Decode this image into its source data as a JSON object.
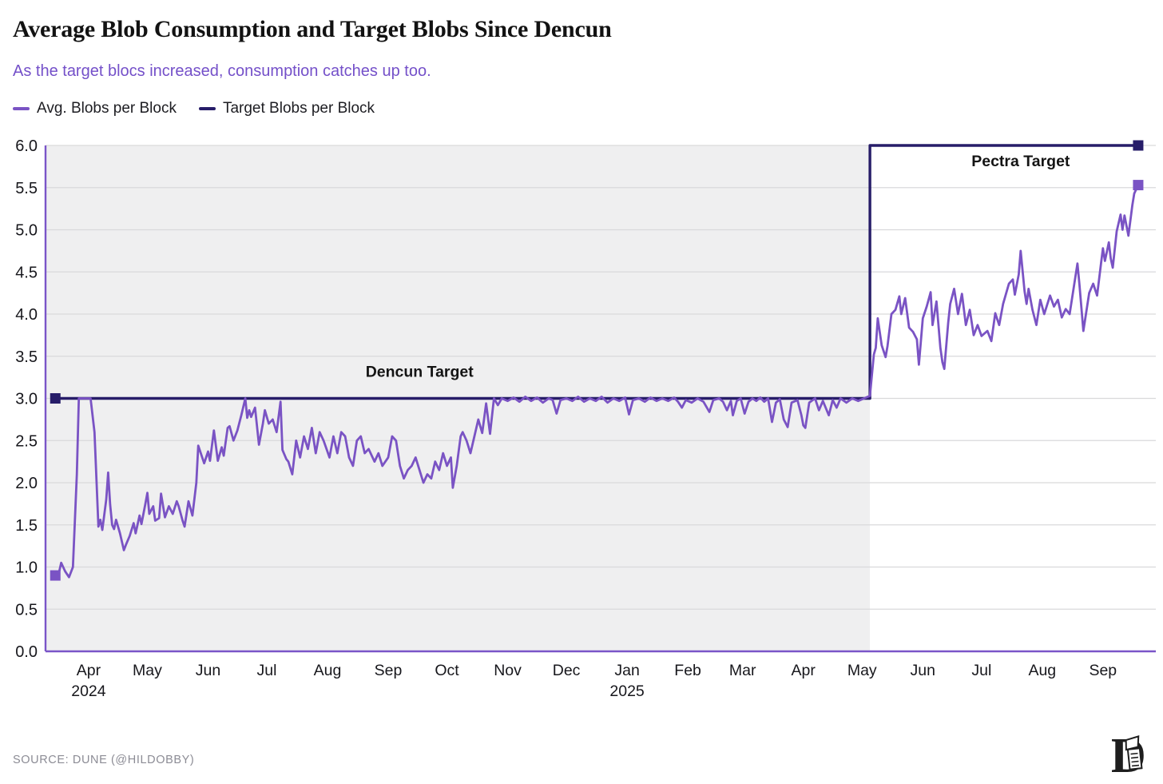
{
  "header": {
    "title": "Average Blob Consumption and Target Blobs Since Dencun",
    "subtitle": "As the target blocs increased, consumption catches up too.",
    "subtitle_color": "#7450c9",
    "legend": [
      {
        "label": "Avg. Blobs per Block",
        "color": "#7a53c4"
      },
      {
        "label": "Target Blobs per Block",
        "color": "#271d69"
      }
    ]
  },
  "footer": {
    "source": "SOURCE: DUNE (@HILDOBBY)",
    "logo_icon": "defiant-d-logo"
  },
  "chart_data": {
    "type": "line",
    "title": "Average Blob Consumption and Target Blobs Since Dencun",
    "subtitle": "As the target blocs increased, consumption catches up too.",
    "grid": "horizontal-only",
    "legend_position": "top-left",
    "colors": {
      "plot_background_left": "#efeff0",
      "plot_background_right": "#ffffff",
      "gridline": "#d9d9db",
      "axis": "#7a55c8",
      "tick_text": "#17171c",
      "annotation_text": "#141414"
    },
    "x_axis": {
      "x_unit": "day index (0 = chart start, mid-March 2024)",
      "domain": [
        -5,
        562
      ],
      "ticks": [
        {
          "day": 17,
          "label": "Apr",
          "year": "2024"
        },
        {
          "day": 47,
          "label": "May"
        },
        {
          "day": 78,
          "label": "Jun"
        },
        {
          "day": 108,
          "label": "Jul"
        },
        {
          "day": 139,
          "label": "Aug"
        },
        {
          "day": 170,
          "label": "Sep"
        },
        {
          "day": 200,
          "label": "Oct"
        },
        {
          "day": 231,
          "label": "Nov"
        },
        {
          "day": 261,
          "label": "Dec"
        },
        {
          "day": 292,
          "label": "Jan",
          "year": "2025"
        },
        {
          "day": 323,
          "label": "Feb"
        },
        {
          "day": 351,
          "label": "Mar"
        },
        {
          "day": 382,
          "label": "Apr"
        },
        {
          "day": 412,
          "label": "May"
        },
        {
          "day": 443,
          "label": "Jun"
        },
        {
          "day": 473,
          "label": "Jul"
        },
        {
          "day": 504,
          "label": "Aug"
        },
        {
          "day": 535,
          "label": "Sep"
        }
      ]
    },
    "y_axis": {
      "domain": [
        0,
        6
      ],
      "tick_step": 0.5,
      "tick_labels": [
        "0.0",
        "0.5",
        "1.0",
        "1.5",
        "2.0",
        "2.5",
        "3.0",
        "3.5",
        "4.0",
        "4.5",
        "5.0",
        "5.5",
        "6.0"
      ]
    },
    "shaded_region": {
      "from_day": -5,
      "to_day": 416,
      "color": "#efeff0"
    },
    "annotations": [
      {
        "text": "Dencun Target",
        "day": 186,
        "value": 3.32
      },
      {
        "text": "Pectra Target",
        "day": 493,
        "value": 5.82
      }
    ],
    "series": [
      {
        "name": "Target Blobs per Block",
        "color": "#271d69",
        "stroke_width": 3.4,
        "end_markers": true,
        "points": [
          [
            0,
            3
          ],
          [
            416,
            3
          ],
          [
            416,
            6
          ],
          [
            553,
            6
          ]
        ]
      },
      {
        "name": "Avg. Blobs per Block",
        "color": "#7a53c4",
        "stroke_width": 2.8,
        "end_markers": true,
        "points": [
          [
            0,
            0.9
          ],
          [
            2,
            0.95
          ],
          [
            3,
            1.05
          ],
          [
            5,
            0.95
          ],
          [
            7,
            0.88
          ],
          [
            9,
            1.0
          ],
          [
            11,
            2.1
          ],
          [
            12,
            3.0
          ],
          [
            18,
            3.0
          ],
          [
            20,
            2.6
          ],
          [
            22,
            1.48
          ],
          [
            23,
            1.56
          ],
          [
            24,
            1.44
          ],
          [
            26,
            1.8
          ],
          [
            27,
            2.12
          ],
          [
            28,
            1.74
          ],
          [
            29,
            1.5
          ],
          [
            30,
            1.45
          ],
          [
            31,
            1.56
          ],
          [
            33,
            1.4
          ],
          [
            35,
            1.2
          ],
          [
            36,
            1.26
          ],
          [
            38,
            1.37
          ],
          [
            40,
            1.52
          ],
          [
            41,
            1.4
          ],
          [
            43,
            1.61
          ],
          [
            44,
            1.51
          ],
          [
            46,
            1.75
          ],
          [
            47,
            1.88
          ],
          [
            48,
            1.63
          ],
          [
            50,
            1.72
          ],
          [
            51,
            1.55
          ],
          [
            53,
            1.58
          ],
          [
            54,
            1.87
          ],
          [
            56,
            1.59
          ],
          [
            58,
            1.72
          ],
          [
            60,
            1.63
          ],
          [
            62,
            1.78
          ],
          [
            63,
            1.72
          ],
          [
            65,
            1.55
          ],
          [
            66,
            1.48
          ],
          [
            68,
            1.78
          ],
          [
            70,
            1.61
          ],
          [
            72,
            2.0
          ],
          [
            73,
            2.44
          ],
          [
            76,
            2.23
          ],
          [
            78,
            2.37
          ],
          [
            79,
            2.26
          ],
          [
            81,
            2.62
          ],
          [
            83,
            2.26
          ],
          [
            85,
            2.42
          ],
          [
            86,
            2.32
          ],
          [
            88,
            2.65
          ],
          [
            89,
            2.67
          ],
          [
            91,
            2.5
          ],
          [
            93,
            2.62
          ],
          [
            95,
            2.8
          ],
          [
            97,
            3.0
          ],
          [
            98,
            2.77
          ],
          [
            99,
            2.86
          ],
          [
            100,
            2.78
          ],
          [
            102,
            2.89
          ],
          [
            104,
            2.45
          ],
          [
            106,
            2.7
          ],
          [
            107,
            2.86
          ],
          [
            109,
            2.7
          ],
          [
            111,
            2.75
          ],
          [
            113,
            2.6
          ],
          [
            115,
            2.96
          ],
          [
            116,
            2.39
          ],
          [
            118,
            2.28
          ],
          [
            119,
            2.25
          ],
          [
            121,
            2.1
          ],
          [
            123,
            2.5
          ],
          [
            125,
            2.3
          ],
          [
            127,
            2.55
          ],
          [
            129,
            2.4
          ],
          [
            131,
            2.65
          ],
          [
            133,
            2.35
          ],
          [
            135,
            2.6
          ],
          [
            137,
            2.5
          ],
          [
            140,
            2.3
          ],
          [
            142,
            2.55
          ],
          [
            144,
            2.35
          ],
          [
            146,
            2.6
          ],
          [
            148,
            2.55
          ],
          [
            150,
            2.3
          ],
          [
            152,
            2.2
          ],
          [
            154,
            2.5
          ],
          [
            156,
            2.55
          ],
          [
            158,
            2.35
          ],
          [
            160,
            2.4
          ],
          [
            163,
            2.25
          ],
          [
            165,
            2.35
          ],
          [
            167,
            2.2
          ],
          [
            170,
            2.3
          ],
          [
            172,
            2.55
          ],
          [
            174,
            2.5
          ],
          [
            176,
            2.2
          ],
          [
            178,
            2.05
          ],
          [
            180,
            2.15
          ],
          [
            182,
            2.2
          ],
          [
            184,
            2.3
          ],
          [
            186,
            2.15
          ],
          [
            188,
            2.0
          ],
          [
            190,
            2.1
          ],
          [
            192,
            2.05
          ],
          [
            194,
            2.25
          ],
          [
            196,
            2.15
          ],
          [
            198,
            2.35
          ],
          [
            200,
            2.2
          ],
          [
            202,
            2.3
          ],
          [
            203,
            1.94
          ],
          [
            205,
            2.2
          ],
          [
            207,
            2.55
          ],
          [
            208,
            2.6
          ],
          [
            210,
            2.5
          ],
          [
            212,
            2.35
          ],
          [
            214,
            2.55
          ],
          [
            216,
            2.75
          ],
          [
            218,
            2.59
          ],
          [
            220,
            2.94
          ],
          [
            222,
            2.58
          ],
          [
            224,
            3.0
          ],
          [
            226,
            2.92
          ],
          [
            228,
            3.0
          ],
          [
            231,
            2.97
          ],
          [
            234,
            3.01
          ],
          [
            237,
            2.96
          ],
          [
            240,
            3.02
          ],
          [
            243,
            2.97
          ],
          [
            246,
            3.01
          ],
          [
            249,
            2.95
          ],
          [
            252,
            3.0
          ],
          [
            254,
            2.98
          ],
          [
            256,
            2.82
          ],
          [
            258,
            2.98
          ],
          [
            261,
            3.0
          ],
          [
            264,
            2.97
          ],
          [
            267,
            3.02
          ],
          [
            270,
            2.96
          ],
          [
            273,
            3.0
          ],
          [
            276,
            2.97
          ],
          [
            279,
            3.02
          ],
          [
            282,
            2.95
          ],
          [
            285,
            3.0
          ],
          [
            288,
            2.97
          ],
          [
            291,
            3.01
          ],
          [
            293,
            2.81
          ],
          [
            295,
            2.98
          ],
          [
            298,
            3.0
          ],
          [
            301,
            2.96
          ],
          [
            304,
            3.01
          ],
          [
            307,
            2.97
          ],
          [
            310,
            3.0
          ],
          [
            313,
            2.97
          ],
          [
            316,
            3.01
          ],
          [
            318,
            2.96
          ],
          [
            320,
            2.89
          ],
          [
            322,
            2.98
          ],
          [
            325,
            2.95
          ],
          [
            328,
            3.0
          ],
          [
            331,
            2.96
          ],
          [
            334,
            2.84
          ],
          [
            336,
            2.98
          ],
          [
            339,
            3.0
          ],
          [
            341,
            2.96
          ],
          [
            343,
            2.86
          ],
          [
            345,
            2.97
          ],
          [
            346,
            2.8
          ],
          [
            348,
            2.97
          ],
          [
            350,
            3.0
          ],
          [
            352,
            2.82
          ],
          [
            354,
            2.96
          ],
          [
            356,
            3.0
          ],
          [
            358,
            2.97
          ],
          [
            360,
            3.01
          ],
          [
            362,
            2.96
          ],
          [
            364,
            3.0
          ],
          [
            366,
            2.72
          ],
          [
            368,
            2.95
          ],
          [
            370,
            2.99
          ],
          [
            372,
            2.75
          ],
          [
            374,
            2.66
          ],
          [
            376,
            2.95
          ],
          [
            379,
            2.98
          ],
          [
            381,
            2.8
          ],
          [
            382,
            2.68
          ],
          [
            383,
            2.65
          ],
          [
            385,
            2.95
          ],
          [
            388,
            3.0
          ],
          [
            390,
            2.86
          ],
          [
            392,
            2.97
          ],
          [
            395,
            2.8
          ],
          [
            397,
            2.98
          ],
          [
            399,
            2.89
          ],
          [
            401,
            3.0
          ],
          [
            404,
            2.95
          ],
          [
            407,
            3.0
          ],
          [
            410,
            2.97
          ],
          [
            413,
            3.0
          ],
          [
            416,
            3.03
          ],
          [
            418,
            3.52
          ],
          [
            419,
            3.6
          ],
          [
            420,
            3.95
          ],
          [
            422,
            3.63
          ],
          [
            424,
            3.49
          ],
          [
            425,
            3.62
          ],
          [
            427,
            4.0
          ],
          [
            429,
            4.05
          ],
          [
            431,
            4.21
          ],
          [
            432,
            4.0
          ],
          [
            434,
            4.19
          ],
          [
            436,
            3.84
          ],
          [
            438,
            3.79
          ],
          [
            440,
            3.7
          ],
          [
            441,
            3.4
          ],
          [
            443,
            3.95
          ],
          [
            445,
            4.09
          ],
          [
            447,
            4.26
          ],
          [
            448,
            3.87
          ],
          [
            450,
            4.15
          ],
          [
            452,
            3.6
          ],
          [
            453,
            3.43
          ],
          [
            454,
            3.35
          ],
          [
            456,
            3.9
          ],
          [
            457,
            4.12
          ],
          [
            459,
            4.3
          ],
          [
            461,
            4.0
          ],
          [
            463,
            4.24
          ],
          [
            465,
            3.87
          ],
          [
            467,
            4.05
          ],
          [
            469,
            3.75
          ],
          [
            471,
            3.87
          ],
          [
            473,
            3.74
          ],
          [
            476,
            3.8
          ],
          [
            478,
            3.68
          ],
          [
            480,
            4.01
          ],
          [
            482,
            3.87
          ],
          [
            484,
            4.12
          ],
          [
            487,
            4.36
          ],
          [
            489,
            4.41
          ],
          [
            490,
            4.23
          ],
          [
            492,
            4.47
          ],
          [
            493,
            4.75
          ],
          [
            495,
            4.27
          ],
          [
            496,
            4.12
          ],
          [
            497,
            4.3
          ],
          [
            499,
            4.05
          ],
          [
            501,
            3.87
          ],
          [
            503,
            4.17
          ],
          [
            505,
            4.0
          ],
          [
            508,
            4.22
          ],
          [
            510,
            4.09
          ],
          [
            512,
            4.17
          ],
          [
            514,
            3.96
          ],
          [
            516,
            4.06
          ],
          [
            518,
            4.0
          ],
          [
            520,
            4.3
          ],
          [
            522,
            4.6
          ],
          [
            523,
            4.35
          ],
          [
            525,
            3.8
          ],
          [
            528,
            4.25
          ],
          [
            530,
            4.36
          ],
          [
            532,
            4.22
          ],
          [
            534,
            4.6
          ],
          [
            535,
            4.78
          ],
          [
            536,
            4.63
          ],
          [
            538,
            4.85
          ],
          [
            539,
            4.66
          ],
          [
            540,
            4.55
          ],
          [
            542,
            4.98
          ],
          [
            544,
            5.18
          ],
          [
            545,
            5.0
          ],
          [
            546,
            5.17
          ],
          [
            548,
            4.93
          ],
          [
            550,
            5.29
          ],
          [
            551,
            5.43
          ],
          [
            553,
            5.53
          ]
        ]
      }
    ]
  }
}
